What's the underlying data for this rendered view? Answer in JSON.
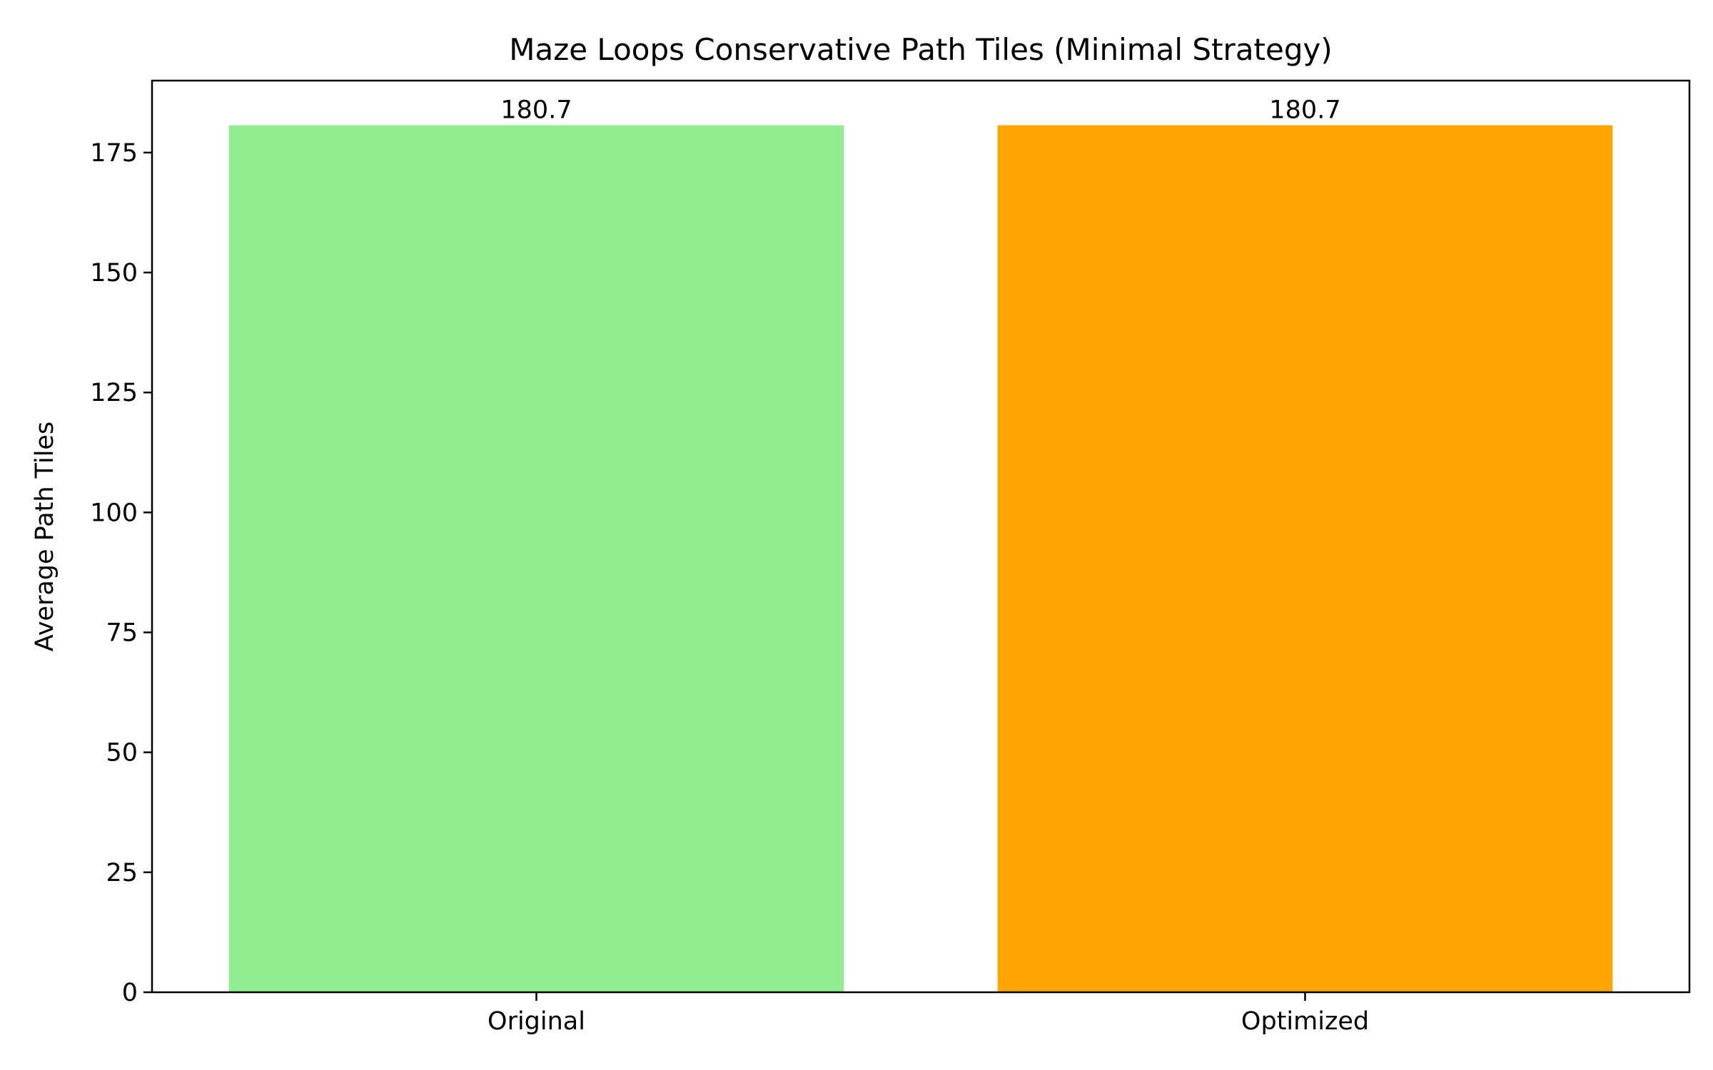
{
  "chart_data": {
    "type": "bar",
    "title": "Maze Loops Conservative Path Tiles (Minimal Strategy)",
    "xlabel": "",
    "ylabel": "Average Path Tiles",
    "categories": [
      "Original",
      "Optimized"
    ],
    "values": [
      180.7,
      180.7
    ],
    "value_labels": [
      "180.7",
      "180.7"
    ],
    "colors": [
      "#90ee90",
      "#ffa500"
    ],
    "ylim": [
      0,
      190
    ],
    "yticks": [
      0,
      25,
      50,
      75,
      100,
      125,
      150,
      175
    ],
    "grid": false,
    "legend": "none"
  }
}
